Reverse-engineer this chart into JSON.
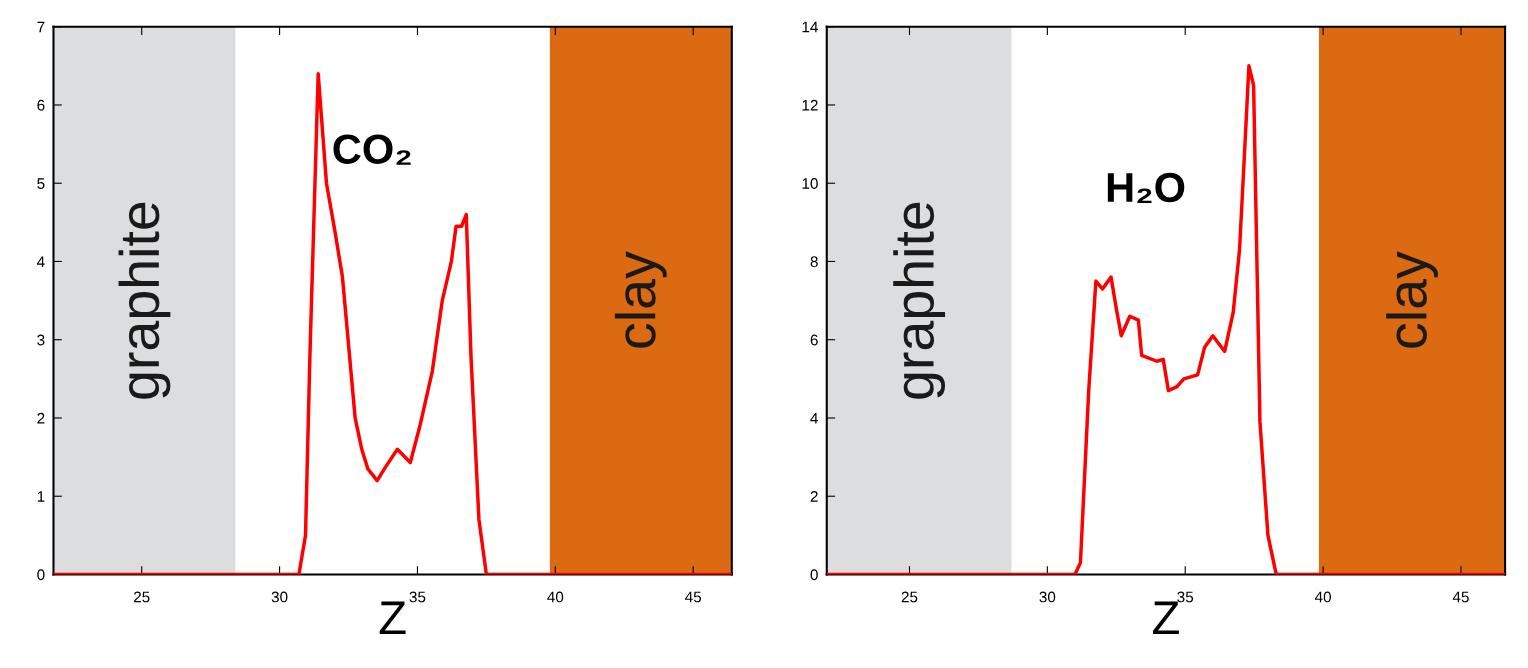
{
  "chart_data": [
    {
      "type": "line",
      "xlabel": "Z",
      "annotations": [
        "CO₂"
      ],
      "xlim": [
        21.8,
        46.4
      ],
      "ylim": [
        0,
        7
      ],
      "xticks": [
        25,
        30,
        35,
        40,
        45
      ],
      "yticks": [
        0,
        1,
        2,
        3,
        4,
        5,
        6,
        7
      ],
      "grid": false,
      "legend": false,
      "bands": [
        {
          "axis": "x",
          "from": 21.8,
          "to": 28.4,
          "label": "graphite",
          "color": "#dcdddf"
        },
        {
          "axis": "x",
          "from": 39.8,
          "to": 46.4,
          "label": "clay",
          "color": "#dc6a12"
        }
      ],
      "series": [
        {
          "color": "#ff0000",
          "x": [
            21.8,
            30.7,
            30.94,
            31.1,
            31.4,
            31.7,
            32.0,
            32.28,
            32.74,
            32.98,
            33.2,
            33.54,
            33.8,
            34.27,
            34.74,
            35.09,
            35.54,
            35.9,
            36.23,
            36.4,
            36.6,
            36.77,
            36.94,
            37.23,
            37.5,
            46.4
          ],
          "values": [
            0,
            0,
            0.5,
            2.8,
            6.4,
            5.0,
            4.4,
            3.8,
            2.0,
            1.6,
            1.35,
            1.2,
            1.35,
            1.6,
            1.43,
            1.9,
            2.6,
            3.5,
            4.0,
            4.45,
            4.45,
            4.6,
            2.8,
            0.7,
            0,
            0
          ]
        }
      ]
    },
    {
      "type": "line",
      "xlabel": "Z",
      "annotations": [
        "H₂O"
      ],
      "xlim": [
        22,
        46.6
      ],
      "ylim": [
        0,
        14
      ],
      "xticks": [
        25,
        30,
        35,
        40,
        45
      ],
      "yticks": [
        0,
        2,
        4,
        6,
        8,
        10,
        12,
        14
      ],
      "grid": false,
      "legend": false,
      "bands": [
        {
          "axis": "x",
          "from": 22,
          "to": 28.7,
          "label": "graphite",
          "color": "#dcdddf"
        },
        {
          "axis": "x",
          "from": 39.85,
          "to": 46.6,
          "label": "clay",
          "color": "#dc6a12"
        }
      ],
      "series": [
        {
          "color": "#ff0000",
          "x": [
            22,
            31.0,
            31.2,
            31.5,
            31.76,
            32.0,
            32.31,
            32.5,
            32.68,
            32.99,
            33.3,
            33.42,
            33.97,
            34.2,
            34.39,
            34.7,
            34.95,
            35.45,
            35.7,
            36.0,
            36.43,
            36.74,
            36.97,
            37.16,
            37.31,
            37.48,
            37.71,
            38.0,
            38.3,
            46.6
          ],
          "values": [
            0,
            0,
            0.3,
            4.7,
            7.5,
            7.3,
            7.6,
            6.8,
            6.1,
            6.6,
            6.5,
            5.6,
            5.45,
            5.5,
            4.7,
            4.8,
            5.0,
            5.1,
            5.8,
            6.1,
            5.7,
            6.7,
            8.3,
            10.9,
            13.0,
            12.5,
            3.9,
            1.0,
            0,
            0
          ]
        }
      ]
    }
  ]
}
